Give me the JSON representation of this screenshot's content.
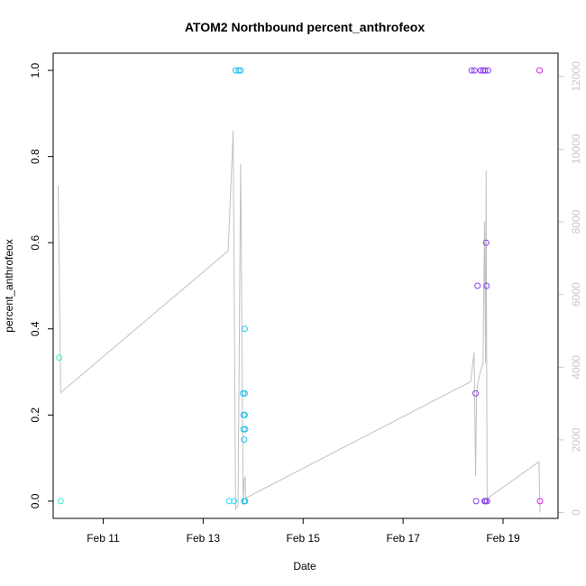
{
  "chart_data": {
    "type": "scatter",
    "title": "ATOM2 Northbound percent_anthrofeox",
    "xlabel": "Date",
    "ylabel": "percent_anthrofeox",
    "x_unit": "days in February",
    "xlim": [
      10.0,
      20.1
    ],
    "ylim": [
      -0.04,
      1.04
    ],
    "y2lim": [
      -160,
      12640
    ],
    "x_ticks": [
      {
        "value": 11,
        "label": "Feb 11"
      },
      {
        "value": 13,
        "label": "Feb 13"
      },
      {
        "value": 15,
        "label": "Feb 15"
      },
      {
        "value": 17,
        "label": "Feb 17"
      },
      {
        "value": 19,
        "label": "Feb 19"
      }
    ],
    "y_ticks": [
      {
        "value": 0.0,
        "label": "0.0"
      },
      {
        "value": 0.2,
        "label": "0.2"
      },
      {
        "value": 0.4,
        "label": "0.4"
      },
      {
        "value": 0.6,
        "label": "0.6"
      },
      {
        "value": 0.8,
        "label": "0.8"
      },
      {
        "value": 1.0,
        "label": "1.0"
      }
    ],
    "y2_ticks": [
      {
        "value": 0,
        "label": "0"
      },
      {
        "value": 2000,
        "label": "2000"
      },
      {
        "value": 4000,
        "label": "4000"
      },
      {
        "value": 6000,
        "label": "6000"
      },
      {
        "value": 8000,
        "label": "8000"
      },
      {
        "value": 10000,
        "label": "10000"
      },
      {
        "value": 12000,
        "label": "12000"
      }
    ],
    "grid": false,
    "legend": "none",
    "points": [
      {
        "x": 10.12,
        "y": 0.333,
        "color": "#33f2c6"
      },
      {
        "x": 10.15,
        "y": 0.0,
        "color": "#33f2c6"
      },
      {
        "x": 13.52,
        "y": 0.0,
        "color": "#2ed2f4"
      },
      {
        "x": 13.62,
        "y": 0.0,
        "color": "#2ed2f4"
      },
      {
        "x": 13.65,
        "y": 1.0,
        "color": "#1ebff0"
      },
      {
        "x": 13.71,
        "y": 1.0,
        "color": "#1ebff0"
      },
      {
        "x": 13.75,
        "y": 1.0,
        "color": "#1ebff0"
      },
      {
        "x": 13.8,
        "y": 0.25,
        "color": "#1ebff0"
      },
      {
        "x": 13.81,
        "y": 0.2,
        "color": "#1ebff0"
      },
      {
        "x": 13.81,
        "y": 0.167,
        "color": "#1ebff0"
      },
      {
        "x": 13.82,
        "y": 0.143,
        "color": "#1ebff0"
      },
      {
        "x": 13.82,
        "y": 0.0,
        "color": "#1ebff0"
      },
      {
        "x": 13.83,
        "y": 0.4,
        "color": "#1ebff0"
      },
      {
        "x": 13.83,
        "y": 0.25,
        "color": "#1ebff0"
      },
      {
        "x": 13.83,
        "y": 0.2,
        "color": "#1ebff0"
      },
      {
        "x": 13.84,
        "y": 0.167,
        "color": "#1ebff0"
      },
      {
        "x": 13.84,
        "y": 0.0,
        "color": "#1ebff0"
      },
      {
        "x": 18.37,
        "y": 1.0,
        "color": "#8a3cf0"
      },
      {
        "x": 18.43,
        "y": 1.0,
        "color": "#8a3cf0"
      },
      {
        "x": 18.45,
        "y": 0.25,
        "color": "#8a3cf0"
      },
      {
        "x": 18.46,
        "y": 0.0,
        "color": "#8a3cf0"
      },
      {
        "x": 18.49,
        "y": 0.5,
        "color": "#8a3cf0"
      },
      {
        "x": 18.55,
        "y": 1.0,
        "color": "#8a3cf0"
      },
      {
        "x": 18.6,
        "y": 1.0,
        "color": "#8a3cf0"
      },
      {
        "x": 18.63,
        "y": 0.0,
        "color": "#8a3cf0"
      },
      {
        "x": 18.64,
        "y": 1.0,
        "color": "#8a3cf0"
      },
      {
        "x": 18.65,
        "y": 0.0,
        "color": "#8a3cf0"
      },
      {
        "x": 18.66,
        "y": 0.6,
        "color": "#8a3cf0"
      },
      {
        "x": 18.67,
        "y": 0.5,
        "color": "#8a3cf0"
      },
      {
        "x": 18.68,
        "y": 0.0,
        "color": "#8a3cf0"
      },
      {
        "x": 18.7,
        "y": 1.0,
        "color": "#8a3cf0"
      },
      {
        "x": 19.73,
        "y": 1.0,
        "color": "#dd22ee"
      },
      {
        "x": 19.74,
        "y": 0.0,
        "color": "#dd22ee"
      }
    ],
    "secondary_line": {
      "axis": "right",
      "color": "#c0c0c0",
      "x": [
        10.1,
        10.15,
        13.5,
        13.6,
        13.65,
        13.7,
        13.75,
        13.8,
        13.82,
        13.84,
        13.85,
        18.35,
        18.42,
        18.45,
        18.47,
        18.5,
        18.55,
        18.6,
        18.63,
        18.65,
        18.66,
        18.68,
        18.7,
        19.72,
        19.74
      ],
      "y": [
        9000,
        3300,
        7200,
        10500,
        100,
        200,
        9600,
        200,
        900,
        1000,
        400,
        3600,
        4400,
        1000,
        3300,
        3600,
        3900,
        4100,
        8000,
        4100,
        9400,
        400,
        400,
        1400,
        0
      ]
    }
  }
}
